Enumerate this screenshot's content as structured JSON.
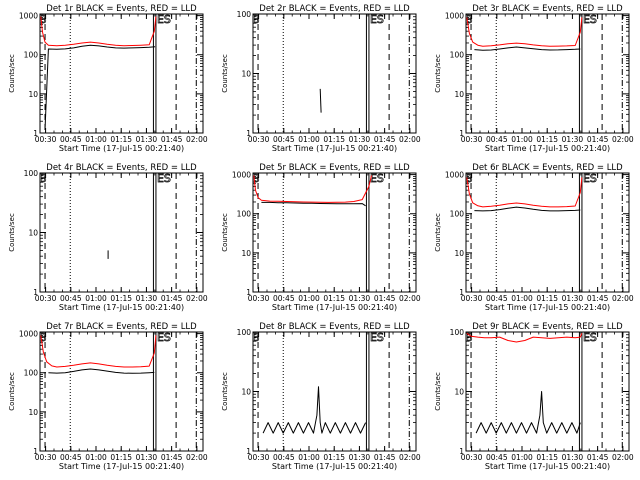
{
  "common": {
    "xlabel": "Start Time (17-Jul-15 00:21:40)",
    "ylabel": "Counts/sec",
    "x_tick_labels": [
      "00:30",
      "00:45",
      "01:00",
      "01:15",
      "01:30",
      "01:45",
      "02:00"
    ],
    "y_tick_labels": [
      "1",
      "10",
      "100",
      "1000"
    ],
    "marker_labels": {
      "start": "B",
      "end": "ES"
    },
    "colors": {
      "events": "#000000",
      "lld": "#ff0000",
      "frame": "#000000"
    }
  },
  "chart_data": [
    {
      "type": "line",
      "title": "Det 1r BLACK = Events, RED = LLD",
      "x_unit": "minutes after 00:21:40",
      "xlim": [
        5,
        102
      ],
      "ylim": [
        1,
        1100
      ],
      "y_scale": "log",
      "x_ticks": [
        8.33,
        23.33,
        38.33,
        53.33,
        68.33,
        83.33,
        98.33
      ],
      "series": [
        {
          "color": "black",
          "x": [
            8,
            10,
            15,
            20,
            25,
            30,
            35,
            40,
            45,
            50,
            55,
            60,
            65,
            70,
            73.5
          ],
          "y": [
            1.2,
            140,
            138,
            141,
            150,
            165,
            175,
            168,
            158,
            150,
            148,
            150,
            152,
            155,
            160
          ]
        },
        {
          "color": "red",
          "x": [
            5.5,
            6.5,
            8,
            10,
            15,
            20,
            25,
            30,
            35,
            40,
            45,
            50,
            55,
            60,
            65,
            70,
            73,
            74
          ],
          "y": [
            950,
            380,
            210,
            175,
            170,
            175,
            185,
            200,
            210,
            200,
            185,
            175,
            170,
            172,
            175,
            180,
            400,
            950
          ]
        }
      ]
    },
    {
      "type": "line",
      "title": "Det 2r BLACK = Events, RED = LLD",
      "x_unit": "minutes after 00:21:40",
      "xlim": [
        5,
        102
      ],
      "ylim": [
        1,
        100
      ],
      "y_scale": "log",
      "x_ticks": [
        8.33,
        23.33,
        38.33,
        53.33,
        68.33,
        83.33,
        98.33
      ],
      "series": [
        {
          "color": "black",
          "x": [
            45,
            45.5
          ],
          "y": [
            5.5,
            2.2
          ]
        }
      ]
    },
    {
      "type": "line",
      "title": "Det 3r BLACK = Events, RED = LLD",
      "x_unit": "minutes after 00:21:40",
      "xlim": [
        5,
        102
      ],
      "ylim": [
        1,
        1100
      ],
      "y_scale": "log",
      "x_ticks": [
        8.33,
        23.33,
        38.33,
        53.33,
        68.33,
        83.33,
        98.33
      ],
      "series": [
        {
          "color": "black",
          "x": [
            10,
            15,
            20,
            25,
            30,
            35,
            40,
            45,
            50,
            55,
            60,
            65,
            70,
            73
          ],
          "y": [
            135,
            130,
            132,
            140,
            150,
            158,
            150,
            142,
            135,
            132,
            133,
            135,
            138,
            140
          ]
        },
        {
          "color": "red",
          "x": [
            5.5,
            7,
            9,
            12,
            15,
            20,
            25,
            30,
            35,
            40,
            45,
            50,
            55,
            60,
            65,
            70,
            73,
            74
          ],
          "y": [
            900,
            350,
            210,
            175,
            165,
            170,
            178,
            190,
            198,
            190,
            178,
            170,
            165,
            166,
            168,
            172,
            380,
            900
          ]
        }
      ]
    },
    {
      "type": "line",
      "title": "Det 4r BLACK = Events, RED = LLD",
      "x_unit": "minutes after 00:21:40",
      "xlim": [
        5,
        102
      ],
      "ylim": [
        1,
        100
      ],
      "y_scale": "log",
      "x_ticks": [
        8.33,
        23.33,
        38.33,
        53.33,
        68.33,
        83.33,
        98.33
      ],
      "series": [
        {
          "color": "black",
          "x": [
            45.5,
            45.5
          ],
          "y": [
            5.0,
            3.6
          ]
        }
      ]
    },
    {
      "type": "line",
      "title": "Det 5r BLACK = Events, RED = LLD",
      "x_unit": "minutes after 00:21:40",
      "xlim": [
        5,
        102
      ],
      "ylim": [
        1,
        1100
      ],
      "y_scale": "log",
      "x_ticks": [
        8.33,
        23.33,
        38.33,
        53.33,
        68.33,
        83.33,
        98.33
      ],
      "series": [
        {
          "color": "black",
          "x": [
            10,
            15,
            20,
            25,
            30,
            35,
            40,
            45,
            50,
            55,
            60,
            65,
            70,
            72
          ],
          "y": [
            195,
            195,
            192,
            190,
            188,
            186,
            185,
            183,
            182,
            180,
            180,
            180,
            182,
            160
          ]
        },
        {
          "color": "red",
          "x": [
            5.5,
            6.5,
            8,
            10,
            15,
            20,
            25,
            30,
            35,
            40,
            45,
            50,
            55,
            60,
            65,
            70,
            74,
            75.5
          ],
          "y": [
            950,
            400,
            260,
            220,
            210,
            208,
            205,
            202,
            200,
            198,
            196,
            195,
            196,
            198,
            205,
            230,
            500,
            950
          ]
        }
      ]
    },
    {
      "type": "line",
      "title": "Det 6r BLACK = Events, RED = LLD",
      "x_unit": "minutes after 00:21:40",
      "xlim": [
        5,
        102
      ],
      "ylim": [
        1,
        1100
      ],
      "y_scale": "log",
      "x_ticks": [
        8.33,
        23.33,
        38.33,
        53.33,
        68.33,
        83.33,
        98.33
      ],
      "series": [
        {
          "color": "black",
          "x": [
            10,
            15,
            20,
            25,
            30,
            35,
            40,
            45,
            50,
            55,
            60,
            65,
            70,
            73
          ],
          "y": [
            120,
            118,
            120,
            128,
            138,
            148,
            140,
            130,
            122,
            118,
            118,
            120,
            122,
            125
          ]
        },
        {
          "color": "red",
          "x": [
            5.5,
            7,
            9,
            12,
            15,
            20,
            25,
            30,
            35,
            40,
            45,
            50,
            55,
            60,
            65,
            70,
            73,
            74
          ],
          "y": [
            850,
            320,
            190,
            160,
            150,
            155,
            165,
            178,
            188,
            178,
            165,
            155,
            150,
            150,
            152,
            158,
            350,
            850
          ]
        }
      ]
    },
    {
      "type": "line",
      "title": "Det 7r BLACK = Events, RED = LLD",
      "x_unit": "minutes after 00:21:40",
      "xlim": [
        5,
        102
      ],
      "ylim": [
        1,
        1100
      ],
      "y_scale": "log",
      "x_ticks": [
        8.33,
        23.33,
        38.33,
        53.33,
        68.33,
        83.33,
        98.33
      ],
      "series": [
        {
          "color": "black",
          "x": [
            10,
            15,
            20,
            25,
            30,
            35,
            40,
            45,
            50,
            55,
            60,
            65,
            70,
            73
          ],
          "y": [
            100,
            98,
            100,
            108,
            118,
            125,
            118,
            110,
            102,
            98,
            97,
            98,
            100,
            102
          ]
        },
        {
          "color": "red",
          "x": [
            5.5,
            7,
            9,
            12,
            15,
            20,
            25,
            30,
            35,
            40,
            45,
            50,
            55,
            60,
            65,
            70,
            73,
            74
          ],
          "y": [
            900,
            330,
            190,
            150,
            140,
            145,
            155,
            168,
            178,
            168,
            155,
            145,
            140,
            140,
            142,
            148,
            320,
            900
          ]
        }
      ]
    },
    {
      "type": "line",
      "title": "Det 8r BLACK = Events, RED = LLD",
      "x_unit": "minutes after 00:21:40",
      "xlim": [
        5,
        102
      ],
      "ylim": [
        1,
        100
      ],
      "y_scale": "log",
      "x_ticks": [
        8.33,
        23.33,
        38.33,
        53.33,
        68.33,
        83.33,
        98.33
      ],
      "series": [
        {
          "color": "black",
          "x": [
            11,
            14,
            17,
            20,
            23,
            26,
            29,
            32,
            35,
            38,
            41,
            43,
            44,
            45,
            46,
            48,
            51,
            54,
            57,
            60,
            63,
            66,
            69,
            72
          ],
          "y": [
            2,
            3,
            2,
            3,
            2,
            3,
            2,
            3,
            2,
            3,
            2,
            4,
            12,
            3,
            2,
            3,
            2,
            3,
            2,
            3,
            2,
            3,
            2,
            3
          ]
        }
      ]
    },
    {
      "type": "line",
      "title": "Det 9r BLACK = Events, RED = LLD",
      "x_unit": "minutes after 00:21:40",
      "xlim": [
        5,
        102
      ],
      "ylim": [
        1,
        100
      ],
      "y_scale": "log",
      "x_ticks": [
        8.33,
        23.33,
        38.33,
        53.33,
        68.33,
        83.33,
        98.33
      ],
      "series": [
        {
          "color": "black",
          "x": [
            11,
            14,
            17,
            20,
            23,
            26,
            29,
            32,
            35,
            38,
            41,
            44,
            47,
            49,
            50,
            51,
            53,
            56,
            59,
            62,
            65,
            68,
            71,
            73
          ],
          "y": [
            2,
            3,
            2,
            3,
            2,
            3,
            2,
            3,
            2,
            3,
            2,
            3,
            2,
            4,
            10,
            3,
            2,
            3,
            2,
            3,
            2,
            3,
            2,
            3
          ]
        },
        {
          "color": "red",
          "x": [
            5.5,
            8,
            12,
            16,
            20,
            25,
            30,
            35,
            40,
            45,
            50,
            55,
            60,
            65,
            70,
            73,
            74
          ],
          "y": [
            95,
            85,
            82,
            80,
            80,
            82,
            72,
            68,
            72,
            82,
            80,
            78,
            80,
            82,
            80,
            82,
            95
          ]
        }
      ]
    }
  ],
  "markers_x": {
    "dashed_start": 8,
    "dotted": 23,
    "double_solid": [
      72.5,
      74
    ],
    "dashed_end": 86,
    "dashdot": 98
  }
}
